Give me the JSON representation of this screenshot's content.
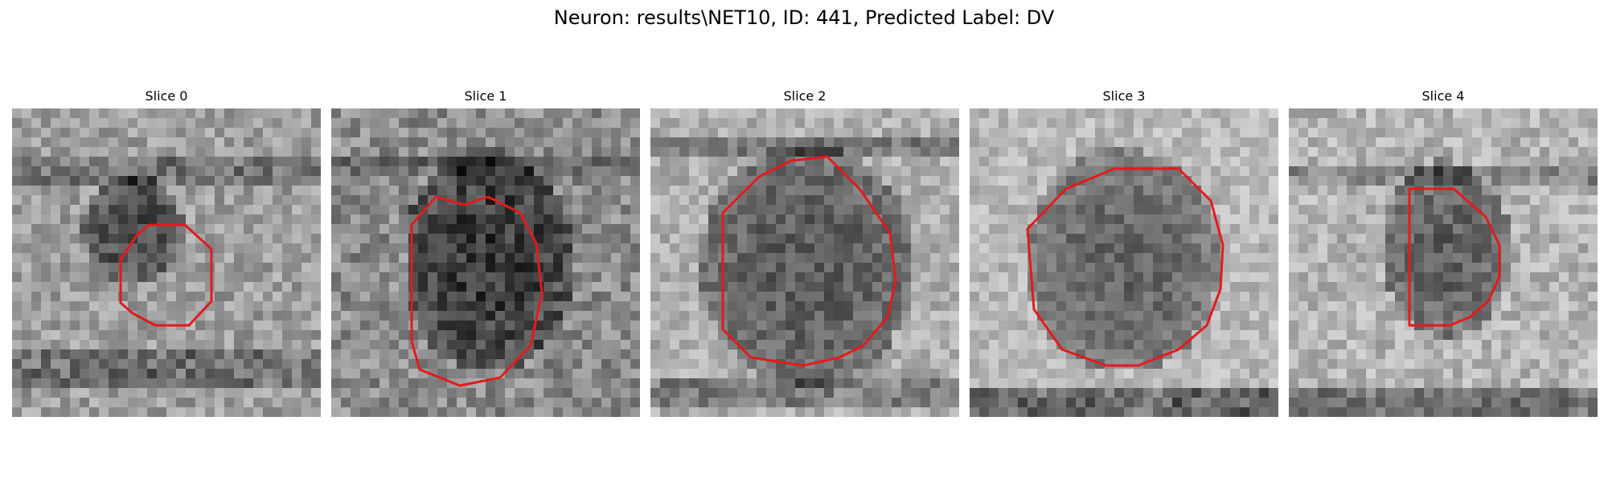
{
  "figure": {
    "title": "Neuron: results\\NET10, ID: 441, Predicted Label: DV"
  },
  "panels": [
    {
      "title": "Slice 0"
    },
    {
      "title": "Slice 1"
    },
    {
      "title": "Slice 2"
    },
    {
      "title": "Slice 3"
    },
    {
      "title": "Slice 4"
    }
  ],
  "colors": {
    "contour": "#e31a1c",
    "background": "#ffffff"
  }
}
